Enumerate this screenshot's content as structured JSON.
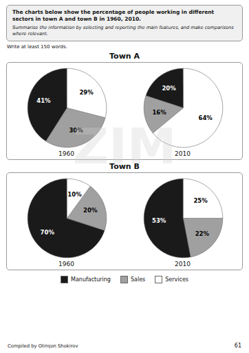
{
  "chart_data": [
    {
      "type": "pie",
      "title": "Town A",
      "xlabel": "1960",
      "categories": [
        "Manufacturing",
        "Sales",
        "Services"
      ],
      "values": [
        41,
        30,
        29
      ],
      "value_labels": [
        "41%",
        "30%",
        "29%"
      ],
      "colors": [
        "#1a1a1a",
        "#a0a0a0",
        "#ffffff"
      ],
      "data_labels": true,
      "legend": "bottom",
      "annotations": [
        "The charts below show the percentage of people working in different sectors in town A and town B in 1960, 2010.",
        "Summarise the information by selecting and reporting the main features, and make comparisons where relevant.",
        "Write at least 150 words.",
        "ZIM",
        "Compiled by Olimjon Shokirov",
        "61"
      ]
    },
    {
      "type": "pie",
      "title": "Town A",
      "xlabel": "2010",
      "categories": [
        "Manufacturing",
        "Sales",
        "Services"
      ],
      "values": [
        20,
        16,
        64
      ],
      "value_labels": [
        "20%",
        "16%",
        "64%"
      ],
      "colors": [
        "#1a1a1a",
        "#a0a0a0",
        "#ffffff"
      ],
      "data_labels": true
    },
    {
      "type": "pie",
      "title": "Town B",
      "xlabel": "1960",
      "categories": [
        "Manufacturing",
        "Sales",
        "Services"
      ],
      "values": [
        70,
        20,
        10
      ],
      "value_labels": [
        "70%",
        "20%",
        "10%"
      ],
      "colors": [
        "#1a1a1a",
        "#a0a0a0",
        "#ffffff"
      ],
      "data_labels": true
    },
    {
      "type": "pie",
      "title": "Town B",
      "xlabel": "2010",
      "categories": [
        "Manufacturing",
        "Sales",
        "Services"
      ],
      "values": [
        53,
        22,
        25
      ],
      "value_labels": [
        "53%",
        "22%",
        "25%"
      ],
      "colors": [
        "#1a1a1a",
        "#a0a0a0",
        "#ffffff"
      ],
      "data_labels": true
    }
  ]
}
